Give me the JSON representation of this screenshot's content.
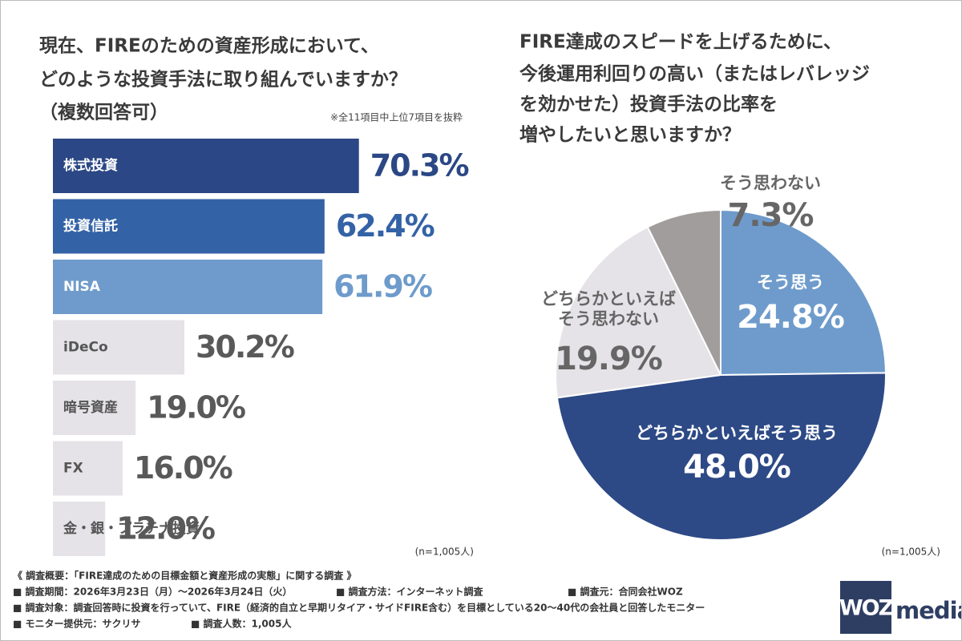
{
  "chart_data": [
    {
      "type": "bar",
      "title": [
        "現在、FIREのための資産形成において、",
        "どのような投資手法に取り組んでいますか？",
        "（複数回答可）"
      ],
      "note": "※全11項目中上位7項目を抜粋",
      "sample": "(n=1,005人)",
      "categories": [
        "株式投資",
        "投資信託",
        "NISA",
        "iDeCo",
        "暗号資産",
        "FX",
        "金・銀・プラチナ投資"
      ],
      "values": [
        70.3,
        62.4,
        61.9,
        30.2,
        19.0,
        16.0,
        12.0
      ],
      "value_labels": [
        "70.3%",
        "62.4%",
        "61.9%",
        "30.2%",
        "19.0%",
        "16.0%",
        "12.0%"
      ],
      "colors": [
        "#2b4785",
        "#3462a6",
        "#6e9bcb",
        "#e5e3e7",
        "#e5e3e7",
        "#e5e3e7",
        "#e5e3e7"
      ]
    },
    {
      "type": "pie",
      "title": [
        "FIRE達成のスピードを上げるために、",
        "今後運用利回りの高い（またはレバレッジ",
        "を効かせた）投資手法の比率を",
        "増やしたいと思いますか？"
      ],
      "sample": "(n=1,005人)",
      "categories": [
        "そう思う",
        "どちらかといえばそう思う",
        "どちらかといえば\nそう思わない",
        "そう思わない"
      ],
      "values": [
        24.8,
        48.0,
        19.9,
        7.3
      ],
      "value_labels": [
        "24.8%",
        "48.0%",
        "19.9%",
        "7.3%"
      ],
      "colors": [
        "#6e9bcb",
        "#2d4a86",
        "#e5e3e7",
        "#a19d9d"
      ]
    }
  ],
  "footer": {
    "rows": [
      [
        "《 調査概要：「FIRE達成のための目標金額と資産形成の実態」に関する調査 》"
      ],
      [
        "■ 調査期間：2026年3月23日（月）〜2026年3月24日（火）",
        "■ 調査方法：インターネット調査",
        "■ 調査元：合同会社WOZ"
      ],
      [
        "■ 調査対象：調査回答時に投資を行っていて、FIRE（経済的自立と早期リタイア・サイドFIRE含む）を目標としている20〜40代の会社員と回答したモニター"
      ],
      [
        "■ モニター提供元：サクリサ",
        "■ 調査人数：1,005人"
      ]
    ],
    "logo": [
      "WOZ",
      "media"
    ]
  }
}
